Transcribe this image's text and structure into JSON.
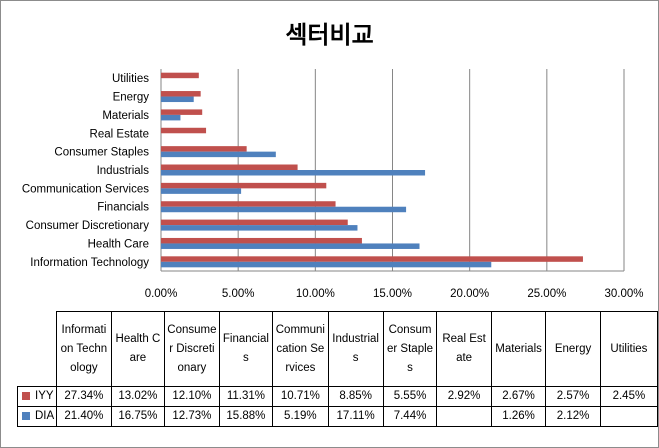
{
  "chart_data": {
    "type": "bar",
    "orientation": "horizontal",
    "title": "섹터비교",
    "categories": [
      "Information Technology",
      "Health Care",
      "Consumer Discretionary",
      "Financials",
      "Communication Services",
      "Industrials",
      "Consumer Staples",
      "Real Estate",
      "Materials",
      "Energy",
      "Utilities"
    ],
    "table_headers": [
      "Information Technology",
      "Health Care",
      "Consumer Discretionary",
      "Financials",
      "Communication Services",
      "Industrials",
      "Consumer Staples",
      "Real Estate",
      "Materials",
      "Energy",
      "Utilities"
    ],
    "series": [
      {
        "name": "IYY",
        "color": "#c0504d",
        "values": [
          27.34,
          13.02,
          12.1,
          11.31,
          10.71,
          8.85,
          5.55,
          2.92,
          2.67,
          2.57,
          2.45
        ],
        "labels": [
          "27.34%",
          "13.02%",
          "12.10%",
          "11.31%",
          "10.71%",
          "8.85%",
          "5.55%",
          "2.92%",
          "2.67%",
          "2.57%",
          "2.45%"
        ]
      },
      {
        "name": "DIA",
        "color": "#4f81bd",
        "values": [
          21.4,
          16.75,
          12.73,
          15.88,
          5.19,
          17.11,
          7.44,
          null,
          1.26,
          2.12,
          null
        ],
        "labels": [
          "21.40%",
          "16.75%",
          "12.73%",
          "15.88%",
          "5.19%",
          "17.11%",
          "7.44%",
          "",
          "1.26%",
          "2.12%",
          ""
        ]
      }
    ],
    "xlim": [
      0,
      30
    ],
    "xticks": [
      "0.00%",
      "5.00%",
      "10.00%",
      "15.00%",
      "20.00%",
      "25.00%",
      "30.00%"
    ],
    "grid": true,
    "legend": "data-table"
  }
}
